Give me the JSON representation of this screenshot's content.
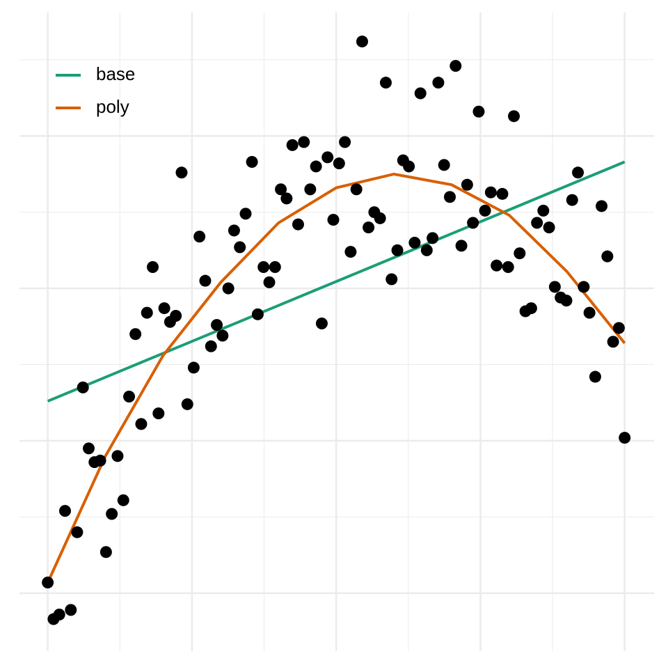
{
  "chart_data": {
    "type": "scatter",
    "x": [
      0,
      1.0,
      2.0,
      3.0,
      4.0,
      5.1,
      6.1,
      7.1,
      8.1,
      9.1,
      10.1,
      11.1,
      12.1,
      13.1,
      14.1,
      15.2,
      16.2,
      17.2,
      18.2,
      19.2,
      20.2,
      21.2,
      22.2,
      23.2,
      24.2,
      25.3,
      26.3,
      27.3,
      28.3,
      29.3,
      30.3,
      31.3,
      32.3,
      33.3,
      34.3,
      35.4,
      36.4,
      37.4,
      38.4,
      39.4,
      40.4,
      41.4,
      42.4,
      43.4,
      44.4,
      45.5,
      46.5,
      47.5,
      48.5,
      49.5,
      50.5,
      51.5,
      52.5,
      53.5,
      54.5,
      55.6,
      56.6,
      57.6,
      58.6,
      59.6,
      60.6,
      61.6,
      62.6,
      63.6,
      64.6,
      65.7,
      66.7,
      67.7,
      68.7,
      69.7,
      70.7,
      71.7,
      72.7,
      73.7,
      74.7,
      75.8,
      76.8,
      77.8,
      78.8,
      79.8,
      80.8,
      81.8,
      82.8,
      83.8,
      84.8,
      85.9,
      86.9,
      87.9,
      88.9,
      89.9,
      90.9,
      91.9,
      92.9,
      93.9,
      94.9,
      96.0,
      97.0,
      98.0,
      99.0,
      100.0
    ],
    "values": [
      0.7,
      -1.7,
      -1.4,
      5.4,
      -1.1,
      4.0,
      13.5,
      9.5,
      8.6,
      8.7,
      2.7,
      5.2,
      9.0,
      6.1,
      12.9,
      17.0,
      11.1,
      18.4,
      21.4,
      11.8,
      18.7,
      17.8,
      18.2,
      27.6,
      12.4,
      14.8,
      23.4,
      20.5,
      16.2,
      17.6,
      16.9,
      20.0,
      23.8,
      22.7,
      24.9,
      28.3,
      18.3,
      21.4,
      20.4,
      21.4,
      26.5,
      25.9,
      29.4,
      24.2,
      29.6,
      26.5,
      28.0,
      17.7,
      28.6,
      24.5,
      28.2,
      29.6,
      22.4,
      26.5,
      36.2,
      24.0,
      25.0,
      24.6,
      33.5,
      20.6,
      22.5,
      28.4,
      28.0,
      23.0,
      32.8,
      22.5,
      23.3,
      33.5,
      28.1,
      26.0,
      34.6,
      22.8,
      26.8,
      24.3,
      31.6,
      25.1,
      26.3,
      21.5,
      26.2,
      21.4,
      31.3,
      22.3,
      18.5,
      18.7,
      24.3,
      25.1,
      24.0,
      20.1,
      19.4,
      19.2,
      25.8,
      27.6,
      20.1,
      18.4,
      14.2,
      25.4,
      22.1,
      16.5,
      17.4,
      10.2
    ],
    "color": "#000000",
    "lines": [
      {
        "name": "base",
        "color": "#1b9e77",
        "x": [
          0,
          100
        ],
        "values": [
          12.6,
          28.3
        ]
      },
      {
        "name": "poly",
        "color": "#d95f02",
        "x": [
          0,
          10,
          20,
          30,
          40,
          50,
          60,
          70,
          80,
          90,
          100
        ],
        "values": [
          0.7,
          9.0,
          15.6,
          20.4,
          24.3,
          26.6,
          27.5,
          26.8,
          24.8,
          21.1,
          16.4
        ]
      }
    ],
    "xlim": [
      -4.9,
      105.1
    ],
    "ylim": [
      -3.8,
      38.1
    ],
    "xticks": [
      0,
      25,
      50,
      75,
      100
    ],
    "yticks": [
      0,
      10,
      20,
      30
    ],
    "xminor": [
      12.5,
      37.5,
      62.5,
      87.5
    ],
    "yminor": [
      5,
      15,
      25,
      35
    ],
    "grid": true,
    "legend": "top-left"
  }
}
